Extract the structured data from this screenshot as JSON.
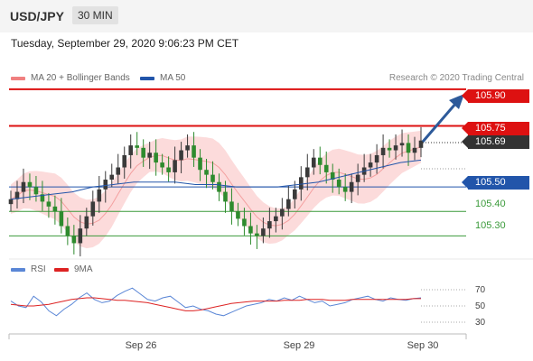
{
  "header": {
    "pair": "USD/JPY",
    "timeframe": "30 MIN"
  },
  "date_line": "Tuesday, September 29, 2020 9:06:23 PM CET",
  "legend": {
    "ma20": "MA 20 + Bollinger Bands",
    "ma50": "MA 50",
    "credit": "Research © 2020 Trading Central"
  },
  "colors": {
    "resistance": "#dd1111",
    "support_blue": "#2255aa",
    "support_green": "#3a9a3a",
    "bollinger": "#fbd5d5",
    "candle_dark": "#3a3a3a",
    "candle_green": "#2e8b2e",
    "current": "#333333",
    "arrow": "#2d5a9a"
  },
  "price_levels": [
    {
      "label": "105.90",
      "kind": "resistance"
    },
    {
      "label": "105.75",
      "kind": "resistance"
    },
    {
      "label": "105.69",
      "kind": "current"
    },
    {
      "label": "105.50",
      "kind": "support_blue"
    },
    {
      "label": "105.40",
      "kind": "support_green"
    },
    {
      "label": "105.30",
      "kind": "support_green"
    }
  ],
  "rsi": {
    "legend_rsi": "RSI",
    "legend_9ma": "9MA",
    "ticks": [
      "70",
      "50",
      "30"
    ]
  },
  "x_axis": [
    "Sep 26",
    "Sep 29",
    "Sep 30"
  ],
  "chart_data": {
    "type": "line",
    "title": "",
    "xlabel": "",
    "ylabel": "",
    "ylim": [
      105.22,
      105.94
    ],
    "levels": [
      105.9,
      105.75,
      105.69,
      105.5,
      105.4,
      105.3
    ],
    "price_close": [
      105.45,
      105.48,
      105.52,
      105.5,
      105.47,
      105.44,
      105.42,
      105.4,
      105.34,
      105.3,
      105.27,
      105.33,
      105.38,
      105.44,
      105.49,
      105.53,
      105.55,
      105.58,
      105.63,
      105.67,
      105.66,
      105.62,
      105.64,
      105.6,
      105.58,
      105.56,
      105.61,
      105.65,
      105.67,
      105.62,
      105.57,
      105.55,
      105.52,
      105.48,
      105.44,
      105.4,
      105.37,
      105.34,
      105.31,
      105.3,
      105.33,
      105.36,
      105.38,
      105.41,
      105.45,
      105.49,
      105.54,
      105.58,
      105.62,
      105.59,
      105.56,
      105.53,
      105.5,
      105.48,
      105.52,
      105.55,
      105.58,
      105.6,
      105.63,
      105.66,
      105.65,
      105.67,
      105.68,
      105.64,
      105.66,
      105.69
    ],
    "ma50": [
      105.45,
      105.46,
      105.47,
      105.48,
      105.5,
      105.51,
      105.52,
      105.52,
      105.52,
      105.51,
      105.51,
      105.5,
      105.5,
      105.5,
      105.51,
      105.52,
      105.54,
      105.56,
      105.58,
      105.6,
      105.61
    ],
    "rsi_values": [
      56,
      50,
      48,
      62,
      55,
      44,
      38,
      46,
      52,
      60,
      66,
      58,
      54,
      56,
      63,
      68,
      72,
      65,
      58,
      56,
      60,
      62,
      55,
      48,
      50,
      46,
      44,
      40,
      38,
      42,
      46,
      50,
      52,
      54,
      58,
      56,
      60,
      57,
      62,
      58,
      54,
      56,
      50,
      52,
      54,
      58,
      60,
      62,
      58,
      56,
      60,
      58,
      57,
      59,
      60
    ],
    "rsi_9ma": [
      52,
      51,
      50,
      50,
      51,
      52,
      54,
      56,
      58,
      59,
      60,
      60,
      59,
      58,
      57,
      57,
      56,
      55,
      54,
      52,
      50,
      48,
      46,
      44,
      44,
      45,
      47,
      49,
      51,
      53,
      54,
      55,
      56,
      56,
      56,
      56,
      57,
      57,
      57,
      58,
      58,
      58,
      57,
      57,
      57,
      58,
      58,
      58,
      58,
      58,
      58,
      58,
      58,
      59,
      59
    ]
  }
}
